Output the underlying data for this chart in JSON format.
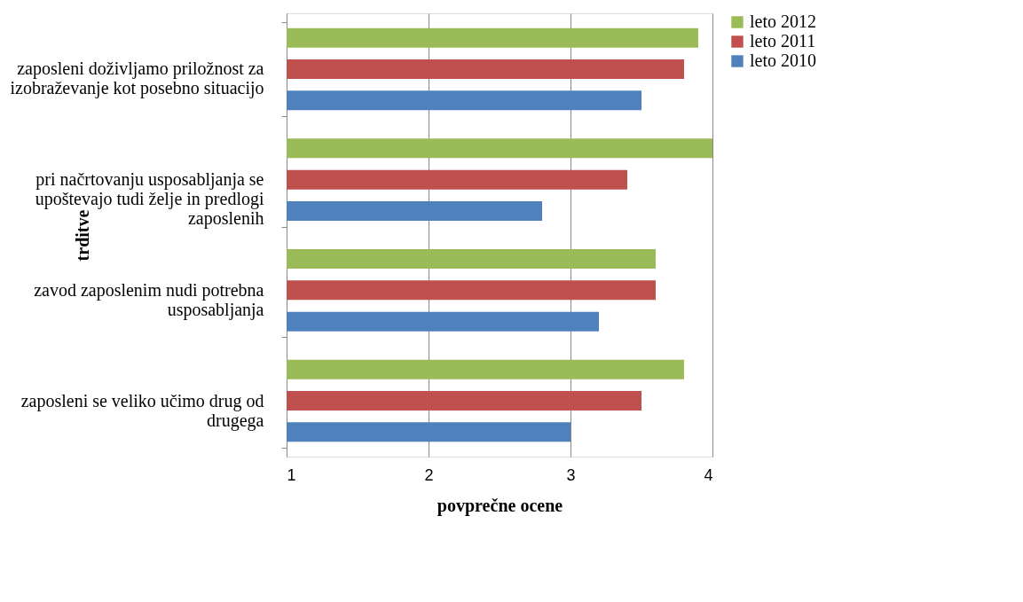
{
  "chart_data": {
    "type": "bar",
    "orientation": "horizontal",
    "xlabel": "povprečne ocene",
    "ylabel": "trditve",
    "categories": [
      "zaposleni doživljamo priložnost za izobraževanje kot  posebno situacijo",
      "pri načrtovanju usposabljanja se upoštevajo tudi želje in predlogi zaposlenih",
      "zavod zaposlenim nudi potrebna usposabljanja",
      "zaposleni se veliko učimo drug od drugega"
    ],
    "series": [
      {
        "name": "leto 2012",
        "color": "#9bbb59",
        "values": [
          3.9,
          4.0,
          3.6,
          3.8
        ]
      },
      {
        "name": "leto 2011",
        "color": "#c0504d",
        "values": [
          3.8,
          3.4,
          3.6,
          3.5
        ]
      },
      {
        "name": "leto 2010",
        "color": "#4f81bd",
        "values": [
          3.5,
          2.8,
          3.2,
          3.0
        ]
      }
    ],
    "xlim": [
      1,
      4
    ],
    "xticks": [
      1,
      2,
      3,
      4
    ],
    "grid": "x",
    "legend": "right"
  }
}
